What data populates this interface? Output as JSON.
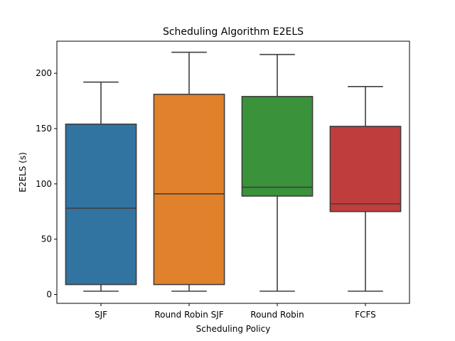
{
  "chart_data": {
    "type": "box",
    "title": "Scheduling Algorithm E2ELS",
    "xlabel": "Scheduling Policy",
    "ylabel": "E2ELS (s)",
    "ylim": [
      -8,
      229
    ],
    "yticks": [
      0,
      50,
      100,
      150,
      200
    ],
    "grid": false,
    "categories": [
      "SJF",
      "Round Robin SJF",
      "Round Robin",
      "FCFS"
    ],
    "boxes": [
      {
        "category": "SJF",
        "min": 3,
        "q1": 9,
        "median": 78,
        "q3": 154,
        "max": 192,
        "color": "#3274a1"
      },
      {
        "category": "Round Robin SJF",
        "min": 3,
        "q1": 9,
        "median": 91,
        "q3": 181,
        "max": 219,
        "color": "#e1812c"
      },
      {
        "category": "Round Robin",
        "min": 3,
        "q1": 89,
        "median": 97,
        "q3": 179,
        "max": 217,
        "color": "#3a923a"
      },
      {
        "category": "FCFS",
        "min": 3,
        "q1": 75,
        "median": 82,
        "q3": 152,
        "max": 188,
        "color": "#c03d3e"
      }
    ]
  }
}
